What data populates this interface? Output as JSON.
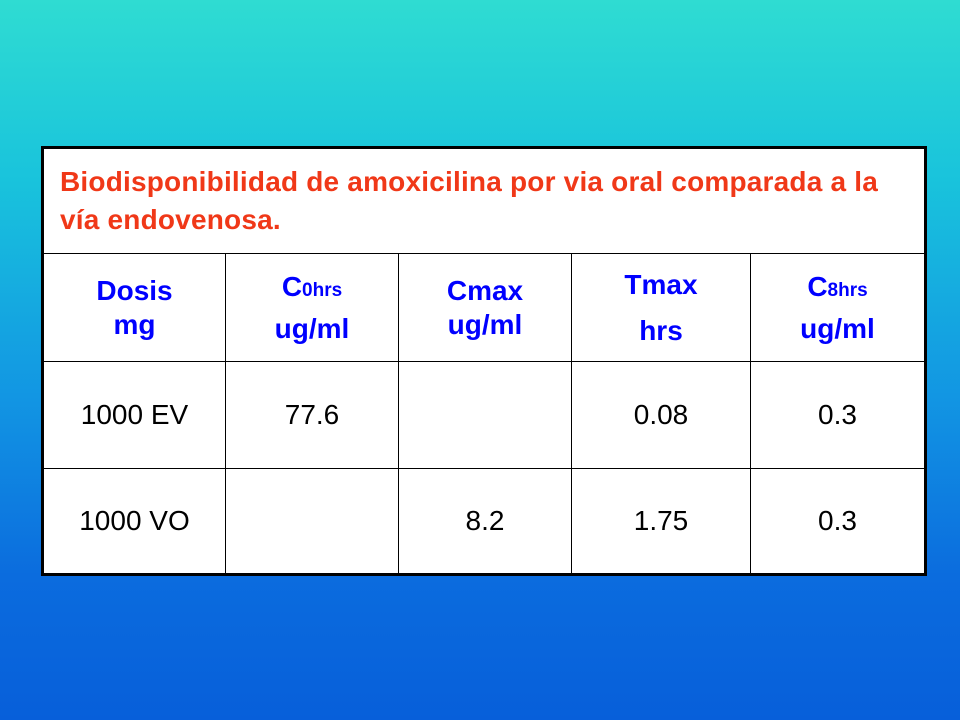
{
  "table": {
    "title": "Biodisponibilidad de amoxicilina por via oral comparada a la vía endovenosa.",
    "headers": [
      {
        "main": "Dosis",
        "sub": "",
        "unit": "mg"
      },
      {
        "main": "C",
        "sub": "0hrs",
        "unit": "ug/ml"
      },
      {
        "main": "Cmax",
        "sub": "",
        "unit": "ug/ml"
      },
      {
        "main": "Tmax",
        "sub": "",
        "unit": "hrs"
      },
      {
        "main": "C",
        "sub": "8hrs",
        "unit": "ug/ml"
      }
    ],
    "rows": [
      [
        "1000 EV",
        "77.6",
        "",
        "0.08",
        "0.3"
      ],
      [
        "1000 VO",
        "",
        "8.2",
        "1.75",
        "0.3"
      ]
    ]
  },
  "colors": {
    "title": "#f03818",
    "header": "#0000ff",
    "background_top": "#2fdcd2",
    "background_bottom": "#075fda"
  }
}
